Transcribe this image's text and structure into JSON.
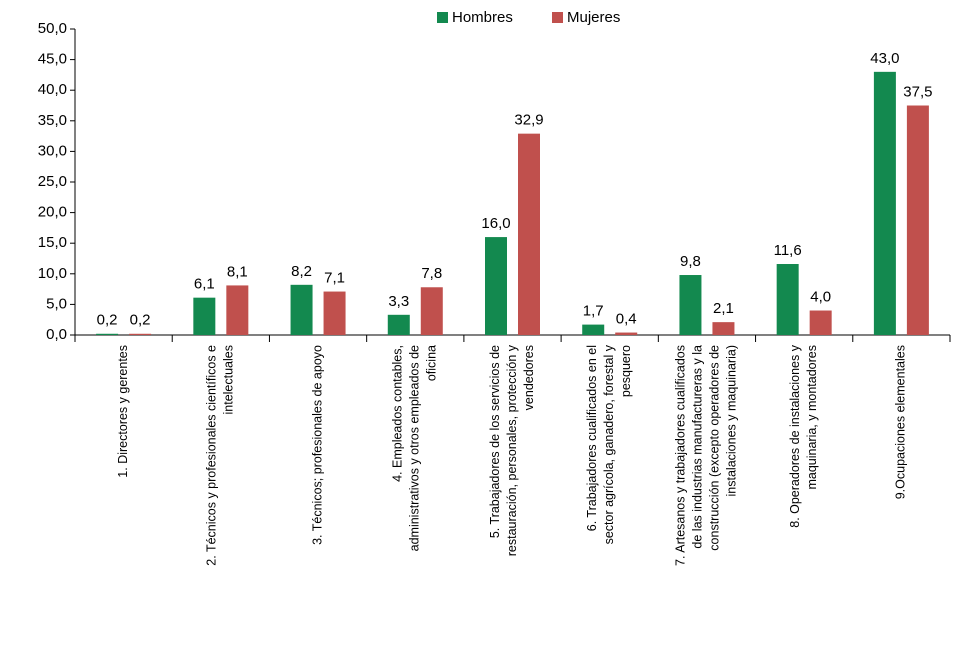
{
  "chart_data": {
    "type": "bar",
    "categories": [
      [
        "1. Directores y gerentes"
      ],
      [
        "2. Técnicos y profesionales científicos e",
        "intelectuales"
      ],
      [
        "3. Técnicos; profesionales de apoyo"
      ],
      [
        "4. Empleados contables,",
        "administrativos y otros empleados de",
        "oficina"
      ],
      [
        "5. Trabajadores de los servicios de",
        "restauración, personales, protección y",
        "vendedores"
      ],
      [
        "6. Trabajadores cualificados en el",
        "sector agrícola, ganadero, forestal y",
        "pesquero"
      ],
      [
        "7. Artesanos y trabajadores cualificados",
        "de las industrias manufactureras y la",
        "construcción (excepto operadores de",
        "instalaciones y maquinaria)"
      ],
      [
        "8. Operadores de instalaciones y",
        "maquinaria, y montadores"
      ],
      [
        "9.Ocupaciones elementales"
      ]
    ],
    "series": [
      {
        "name": "Hombres",
        "color": "#13894f",
        "values": [
          0.2,
          6.1,
          8.2,
          3.3,
          16.0,
          1.7,
          9.8,
          11.6,
          43.0
        ],
        "value_labels": [
          "0,2",
          "6,1",
          "8,2",
          "3,3",
          "16,0",
          "1,7",
          "9,8",
          "11,6",
          "43,0"
        ]
      },
      {
        "name": "Mujeres",
        "color": "#c0504d",
        "values": [
          0.2,
          8.1,
          7.1,
          7.8,
          32.9,
          0.4,
          2.1,
          4.0,
          37.5
        ],
        "value_labels": [
          "0,2",
          "8,1",
          "7,1",
          "7,8",
          "32,9",
          "0,4",
          "2,1",
          "4,0",
          "37,5"
        ]
      }
    ],
    "ylim": [
      0,
      50
    ],
    "yticks": [
      {
        "value": 0,
        "label": "0,0"
      },
      {
        "value": 5,
        "label": "5,0"
      },
      {
        "value": 10,
        "label": "10,0"
      },
      {
        "value": 15,
        "label": "15,0"
      },
      {
        "value": 20,
        "label": "20,0"
      },
      {
        "value": 25,
        "label": "25,0"
      },
      {
        "value": 30,
        "label": "30,0"
      },
      {
        "value": 35,
        "label": "35,0"
      },
      {
        "value": 40,
        "label": "40,0"
      },
      {
        "value": 45,
        "label": "45,0"
      },
      {
        "value": 50,
        "label": "50,0"
      }
    ],
    "legend": "top"
  }
}
